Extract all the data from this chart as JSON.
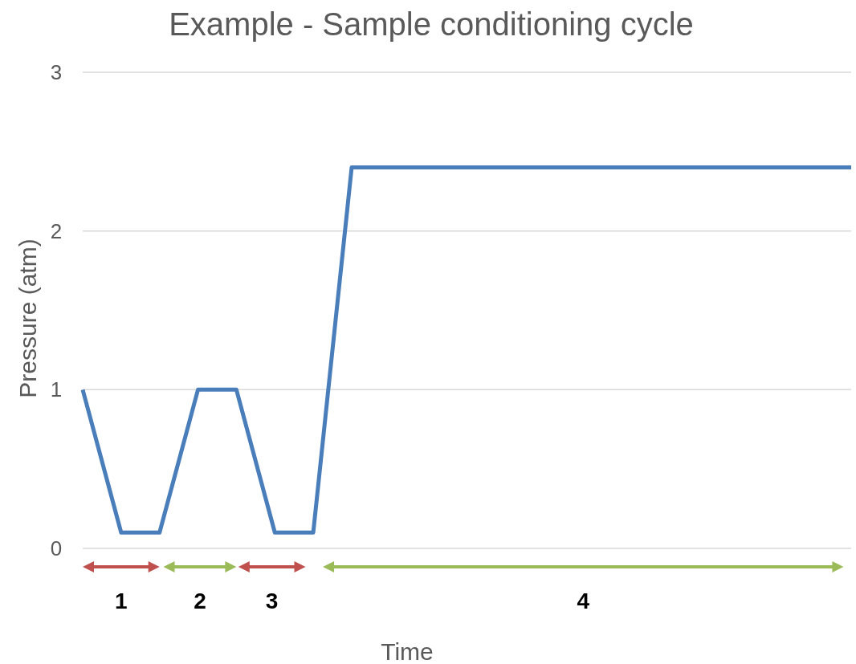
{
  "chart_data": {
    "type": "line",
    "title": "Example - Sample conditioning cycle",
    "xlabel": "Time",
    "ylabel": "Pressure (atm)",
    "categories": [
      null,
      null,
      null,
      null,
      null,
      null,
      null,
      null,
      null,
      null,
      null,
      null,
      null,
      null,
      null,
      null,
      null,
      null,
      null,
      null,
      null
    ],
    "series": [
      {
        "color": "#4a7ebb",
        "values": [
          1,
          0.1,
          0.1,
          1,
          1,
          0.1,
          0.1,
          2.4,
          2.4,
          2.4,
          2.4,
          2.4,
          2.4,
          2.4,
          2.4,
          2.4,
          2.4,
          2.4,
          2.4,
          2.4,
          2.4
        ]
      }
    ],
    "ylim": [
      0,
      3
    ],
    "yticks": [
      0,
      1,
      2,
      3
    ],
    "grid": "y",
    "marker": "none",
    "line_style": "solid",
    "annotations": [
      "1",
      "2",
      "3",
      "4"
    ]
  }
}
